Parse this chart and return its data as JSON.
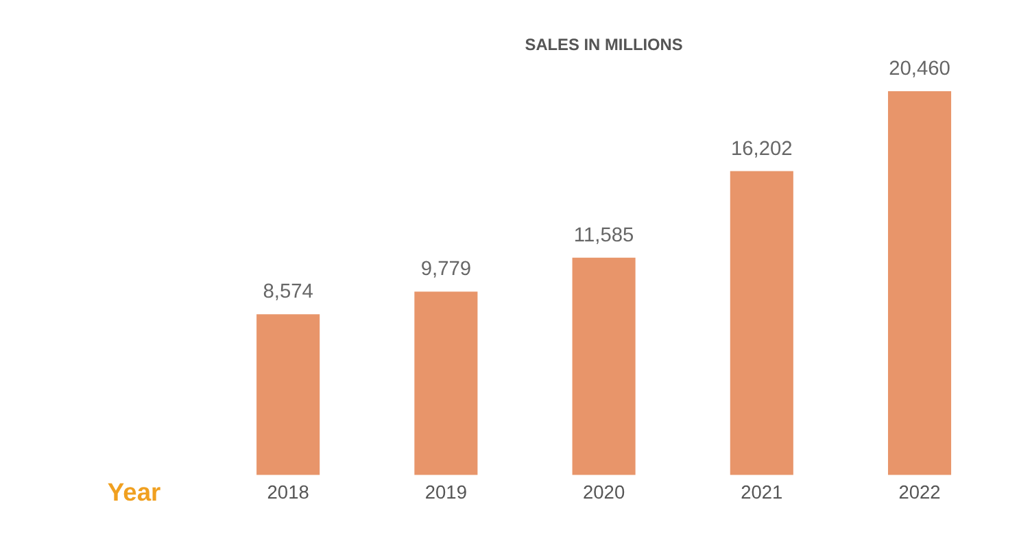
{
  "chart_data": {
    "type": "bar",
    "title": "SALES IN MILLIONS",
    "xlabel": "Year",
    "categories": [
      "2018",
      "2019",
      "2020",
      "2021",
      "2022"
    ],
    "values": [
      8574,
      9779,
      11585,
      16202,
      20460
    ],
    "value_labels": [
      "8,574",
      "9,779",
      "11,585",
      "16,202",
      "20,460"
    ],
    "color": "#e8956a"
  }
}
